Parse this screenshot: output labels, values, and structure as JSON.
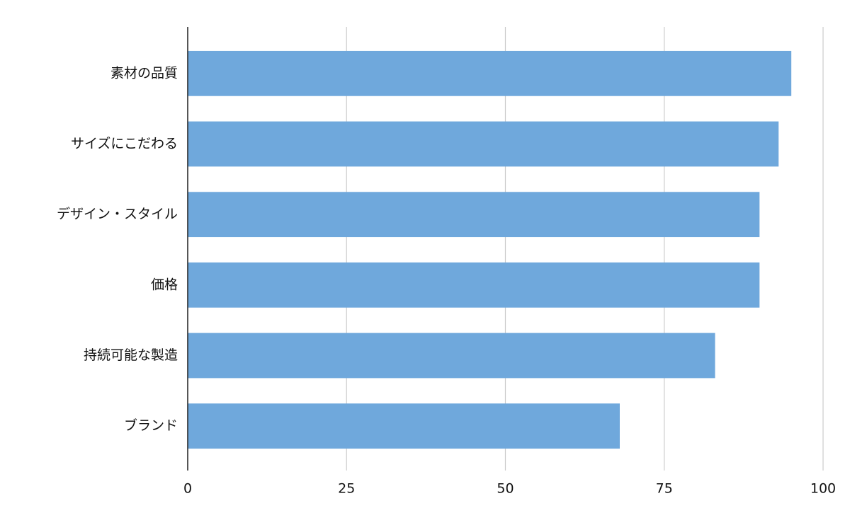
{
  "chart_data": {
    "type": "bar",
    "orientation": "horizontal",
    "categories": [
      "素材の品質",
      "サイズにこだわる",
      "デザイン・スタイル",
      "価格",
      "持続可能な製造",
      "ブランド"
    ],
    "values": [
      95,
      93,
      90,
      90,
      83,
      68
    ],
    "color": "#6fa8dc",
    "xlim": [
      0,
      100
    ],
    "xticks": [
      0,
      25,
      50,
      75,
      100
    ],
    "grid": true
  }
}
